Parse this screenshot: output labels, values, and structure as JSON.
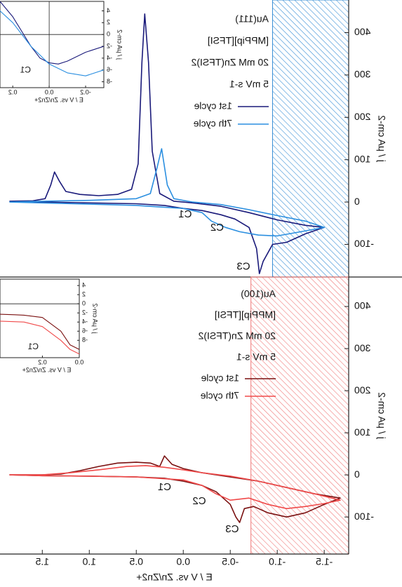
{
  "chart_data": [
    {
      "type": "line",
      "ylabel": "j / μA cm-2",
      "xlim": [
        -1.76,
        1.95
      ],
      "ylim": [
        -177,
        477
      ],
      "yticks": [
        -100,
        0,
        100,
        200,
        300,
        400
      ],
      "shaded_region": {
        "x": [
          -1.76,
          -0.95
        ],
        "color": "#3a8fd6"
      },
      "labels": [
        "Au(111)",
        "[MPPip][TFSI]",
        "20 mM Zn(TFSI)2",
        "5 mV s-1"
      ],
      "peak_labels": [
        {
          "text": "C1",
          "x": -0.02,
          "y": -30
        },
        {
          "text": "C2",
          "x": -0.36,
          "y": -61
        },
        {
          "text": "C3",
          "x": -0.64,
          "y": -153
        }
      ],
      "peak_label_color": "#1a1a7a",
      "series": [
        {
          "name": "1st cycle",
          "color": "#1a1a7a",
          "x": [
            1.85,
            1.5,
            1.0,
            0.5,
            0.2,
            0.0,
            -0.2,
            -0.4,
            -0.55,
            -0.7,
            -0.78,
            -0.81,
            -0.85,
            -0.95,
            -1.1,
            -1.3,
            -1.5,
            -1.3,
            -1.0,
            -0.7,
            -0.4,
            -0.1,
            0.1,
            0.25,
            0.33,
            0.37,
            0.41,
            0.44,
            0.48,
            0.55,
            0.7,
            0.9,
            1.1,
            1.25,
            1.32,
            1.37,
            1.41,
            1.47,
            1.6,
            1.85
          ],
          "values": [
            2,
            0,
            -2,
            -4,
            -8,
            -15,
            -20,
            -30,
            -40,
            -60,
            -110,
            -169,
            -140,
            -100,
            -95,
            -75,
            -60,
            -55,
            -42,
            -25,
            -10,
            -2,
            2,
            20,
            120,
            330,
            444,
            330,
            90,
            30,
            18,
            15,
            18,
            25,
            50,
            71,
            40,
            8,
            3,
            2
          ]
        },
        {
          "name": "7th cycle",
          "color": "#2b8fe0",
          "x": [
            1.85,
            1.5,
            1.0,
            0.5,
            0.0,
            -0.2,
            -0.3,
            -0.45,
            -0.6,
            -0.8,
            -1.0,
            -1.2,
            -1.5,
            -1.3,
            -1.0,
            -0.7,
            -0.4,
            -0.1,
            0.1,
            0.17,
            0.23,
            0.28,
            0.35,
            0.5,
            1.0,
            1.5,
            1.85
          ],
          "values": [
            0,
            -2,
            -5,
            -8,
            -15,
            -25,
            -45,
            -60,
            -70,
            -78,
            -80,
            -72,
            -60,
            -45,
            -32,
            -18,
            -6,
            0,
            8,
            40,
            126,
            80,
            20,
            8,
            4,
            2,
            0
          ]
        }
      ]
    },
    {
      "type": "line",
      "ylabel": "j / μA cm-2",
      "xlabel": "E / V vs. Zn/Zn2+",
      "xlim": [
        -1.76,
        1.95
      ],
      "ylim": [
        -188,
        470
      ],
      "yticks": [
        -100,
        0,
        100,
        200,
        300,
        400
      ],
      "xticks": [
        -1.5,
        {
          "value": -1,
          "label": "-1.0"
        },
        -0.5,
        {
          "value": 0,
          "label": "0.0"
        },
        0.5,
        {
          "value": 1,
          "label": "1.0"
        },
        1.5
      ],
      "shaded_region": {
        "x": [
          -1.76,
          -0.72
        ],
        "color": "#f07878"
      },
      "labels": [
        "Au(100)",
        "[MPPip][TFSI]",
        "20 mM Zn(TFSI)2",
        "5 mV s-1"
      ],
      "peak_labels": [
        {
          "text": "C1",
          "x": 0.2,
          "y": -30
        },
        {
          "text": "C2",
          "x": -0.17,
          "y": -63
        },
        {
          "text": "C3",
          "x": -0.52,
          "y": -130
        }
      ],
      "peak_label_color": "#7a1010",
      "series": [
        {
          "name": "1st cycle",
          "color": "#7a1010",
          "x": [
            1.85,
            1.5,
            1.0,
            0.5,
            0.2,
            0.0,
            -0.2,
            -0.35,
            -0.5,
            -0.56,
            -0.6,
            -0.65,
            -0.75,
            -0.9,
            -1.1,
            -1.3,
            -1.5,
            -1.67,
            -1.4,
            -1.1,
            -0.8,
            -0.5,
            -0.2,
            0.0,
            0.12,
            0.2,
            0.25,
            0.35,
            0.5,
            0.7,
            0.9,
            1.1,
            1.3,
            1.5,
            1.85
          ],
          "values": [
            0,
            -2,
            -3,
            -5,
            -8,
            -15,
            -25,
            -40,
            -70,
            -100,
            -113,
            -80,
            -75,
            -90,
            -100,
            -90,
            -70,
            -55,
            -45,
            -30,
            -15,
            -5,
            5,
            15,
            25,
            45,
            20,
            28,
            30,
            28,
            20,
            10,
            2,
            0,
            0
          ]
        },
        {
          "name": "7th cycle",
          "color": "#f04a4a",
          "x": [
            1.85,
            1.5,
            1.0,
            0.5,
            0.0,
            -0.2,
            -0.35,
            -0.5,
            -0.7,
            -0.9,
            -1.1,
            -1.3,
            -1.5,
            -1.67,
            -1.4,
            -1.1,
            -0.8,
            -0.5,
            -0.2,
            0.0,
            0.2,
            0.4,
            0.6,
            0.9,
            1.2,
            1.5,
            1.85
          ],
          "values": [
            0,
            -2,
            -3,
            -5,
            -12,
            -25,
            -45,
            -60,
            -55,
            -70,
            -80,
            -75,
            -68,
            -60,
            -45,
            -30,
            -15,
            -3,
            5,
            12,
            18,
            22,
            20,
            12,
            5,
            0,
            0
          ]
        }
      ]
    },
    {
      "type": "line",
      "ylabel": "j / μA cm-2",
      "xlabel": "E / V vs. Zn/Zn2+",
      "xlim": [
        -0.3,
        0.27
      ],
      "ylim": [
        -9,
        5.6
      ],
      "yticks": [
        -8,
        -6,
        -4,
        -2,
        0,
        2,
        4
      ],
      "xticks": [
        -0.2,
        {
          "value": 0,
          "label": "0.0"
        },
        0.2
      ],
      "peak_labels": [
        {
          "text": "C1",
          "x": 0.13,
          "y": -6.1
        }
      ],
      "peak_label_color": "#1a1a7a",
      "series": [
        {
          "color": "#1a1a7a",
          "x": [
            -0.3,
            -0.2,
            -0.1,
            -0.05,
            0.0,
            0.05,
            0.1,
            0.2,
            0.27
          ],
          "values": [
            -2,
            -3,
            -4.5,
            -5,
            -4.8,
            -4,
            -2,
            3,
            5.6
          ]
        },
        {
          "color": "#2b8fe0",
          "x": [
            -0.3,
            -0.2,
            -0.1,
            0.0,
            0.1,
            0.2,
            0.27
          ],
          "values": [
            -6,
            -7,
            -6.5,
            -5,
            -2,
            2,
            4
          ]
        }
      ]
    },
    {
      "type": "line",
      "ylabel": "j / μA cm-2",
      "xlabel": "E / V vs. Zn/Zn2+",
      "xlim": [
        0,
        0.43
      ],
      "ylim": [
        -11.8,
        5.4
      ],
      "yticks": [
        -8,
        -6,
        -4,
        -2,
        0,
        2,
        4
      ],
      "xticks": [
        {
          "value": 0,
          "label": "0.0"
        },
        0.2
      ],
      "peak_labels": [
        {
          "text": "C1",
          "x": 0.25,
          "y": -9.5
        }
      ],
      "peak_label_color": "#7a1010",
      "series": [
        {
          "color": "#7a1010",
          "x": [
            0,
            0.05,
            0.1,
            0.2,
            0.3,
            0.35,
            0.43
          ],
          "values": [
            -10,
            -9,
            -6,
            -3,
            -2.5,
            -2.4,
            -2.3
          ]
        },
        {
          "color": "#f04a4a",
          "x": [
            0,
            0.05,
            0.1,
            0.2,
            0.3,
            0.43
          ],
          "values": [
            -11,
            -10,
            -8,
            -5,
            -4,
            -3.8
          ]
        }
      ]
    }
  ]
}
